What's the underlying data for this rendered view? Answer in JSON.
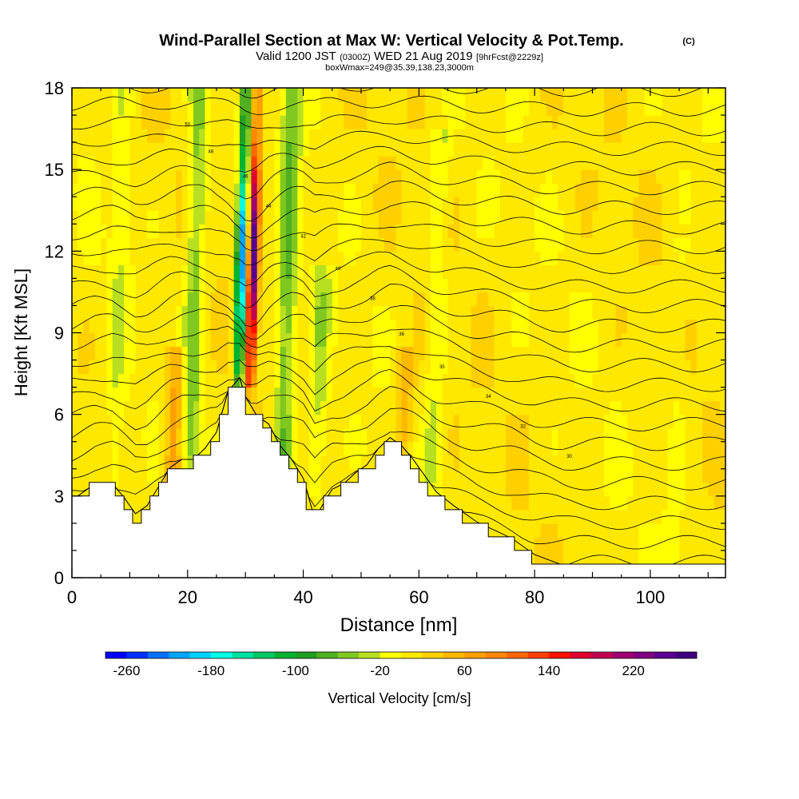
{
  "chart_data": {
    "type": "heatmap",
    "title": "Wind-Parallel Section at Max W: Vertical Velocity & Pot.Temp.",
    "title_mark": "(C)",
    "subtitle_parts": [
      "Valid 1200 JST",
      "(0300Z)",
      "WED 21 Aug 2019",
      "[9hrFcst@2229z]"
    ],
    "subtitle2": "boxWmax=249@35.39,138.23,3000m",
    "xlabel": "Distance [nm]",
    "ylabel": "Height [Kft MSL]",
    "xlim": [
      0,
      113
    ],
    "ylim": [
      0,
      18
    ],
    "x_ticks": [
      "0",
      "20",
      "40",
      "60",
      "80",
      "100"
    ],
    "y_ticks": [
      "0",
      "3",
      "6",
      "9",
      "12",
      "15",
      "18"
    ],
    "colorbar": {
      "label": "Vertical Velocity [cm/s]",
      "tick_labels": [
        "-260",
        "-180",
        "-100",
        "-20",
        "60",
        "140",
        "220"
      ],
      "min": -280,
      "max": 280,
      "step": 20,
      "colors": [
        "#0000ff",
        "#0030ff",
        "#0070ff",
        "#00a5ff",
        "#00d2ff",
        "#00ffe6",
        "#00e0a0",
        "#00c864",
        "#00b432",
        "#20a020",
        "#50b020",
        "#80c820",
        "#b8e020",
        "#ffff00",
        "#ffe800",
        "#ffd000",
        "#ffb800",
        "#ffa000",
        "#ff8800",
        "#ff6800",
        "#ff4000",
        "#ff1000",
        "#e00030",
        "#c00050",
        "#a00070",
        "#800080",
        "#5a0090",
        "#400080"
      ]
    },
    "theta_contour_labels": [
      "50",
      "48",
      "46",
      "44",
      "42",
      "40",
      "38",
      "36",
      "35",
      "34",
      "32",
      "30"
    ],
    "terrain_kft": [
      [
        0,
        2.7
      ],
      [
        4,
        3.3
      ],
      [
        7,
        3.3
      ],
      [
        9,
        2.8
      ],
      [
        11,
        2.2
      ],
      [
        13,
        2.5
      ],
      [
        15,
        3.2
      ],
      [
        17,
        3.9
      ],
      [
        19,
        4.2
      ],
      [
        21,
        4.2
      ],
      [
        23,
        4.6
      ],
      [
        25,
        5.2
      ],
      [
        27,
        6.7
      ],
      [
        29,
        7.2
      ],
      [
        30,
        6.5
      ],
      [
        32,
        5.8
      ],
      [
        34,
        5.5
      ],
      [
        36,
        4.7
      ],
      [
        38,
        4.2
      ],
      [
        40,
        3.5
      ],
      [
        42,
        2.0
      ],
      [
        43,
        2.4
      ],
      [
        45,
        3.1
      ],
      [
        47,
        3.3
      ],
      [
        49,
        3.7
      ],
      [
        51,
        4.0
      ],
      [
        53,
        4.6
      ],
      [
        55,
        5.0
      ],
      [
        57,
        4.7
      ],
      [
        59,
        4.2
      ],
      [
        61,
        3.6
      ],
      [
        63,
        3.0
      ],
      [
        66,
        2.5
      ],
      [
        70,
        1.9
      ],
      [
        73,
        1.6
      ],
      [
        76,
        1.3
      ],
      [
        80,
        0.7
      ],
      [
        85,
        0.3
      ],
      [
        113,
        0.3
      ]
    ],
    "w_features": [
      {
        "x": 29,
        "z0": 7.4,
        "z1": 18,
        "w": -250
      },
      {
        "x": 31,
        "z0": 7.2,
        "z1": 18,
        "w": 249
      },
      {
        "x": 21,
        "z0": 4.5,
        "z1": 18,
        "w": -60
      },
      {
        "x": 37,
        "z0": 4.0,
        "z1": 18,
        "w": -70
      },
      {
        "x": 43,
        "z0": 3.0,
        "z1": 11,
        "w": -40
      },
      {
        "x": 18,
        "z0": 3.5,
        "z1": 8,
        "w": 60
      },
      {
        "x": 8,
        "z0": 3.0,
        "z1": 18,
        "w": -25
      },
      {
        "x": 63,
        "z0": 3.5,
        "z1": 16,
        "w": -30
      },
      {
        "x": 58,
        "z0": 5.0,
        "z1": 8,
        "w": 40
      },
      {
        "x": 105,
        "z0": 0.3,
        "z1": 12,
        "w": -15
      }
    ]
  }
}
